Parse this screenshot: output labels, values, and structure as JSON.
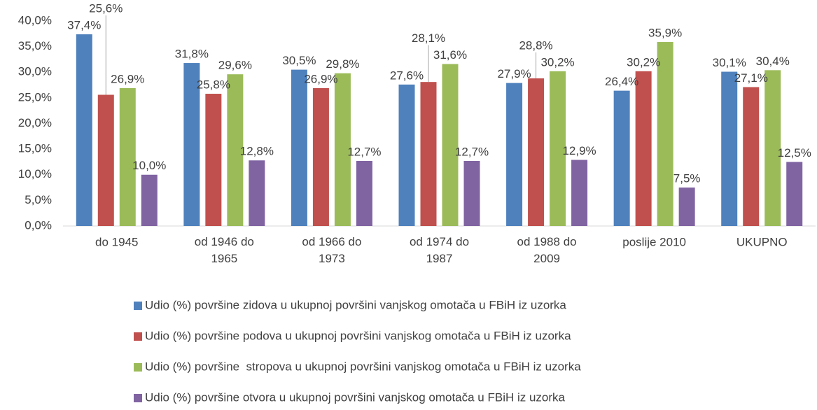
{
  "chart_data": {
    "type": "bar",
    "categories": [
      "do 1945",
      "od 1946 do 1965",
      "od 1966 do 1973",
      "od 1974 do 1987",
      "od 1988 do 2009",
      "poslije 2010",
      "UKUPNO"
    ],
    "series": [
      {
        "name": "Udio (%) površine zidova u ukupnoj površini vanjskog omotača u FBiH iz uzorka",
        "color": "#4f81bd",
        "values": [
          37.4,
          31.8,
          30.5,
          27.6,
          27.9,
          26.4,
          30.1
        ],
        "value_labels": [
          "37,4%",
          "31,8%",
          "30,5%",
          "27,6%",
          "27,9%",
          "26,4%",
          "30,1%"
        ]
      },
      {
        "name": "Udio (%) površine podova u ukupnoj površini vanjskog omotača u FBiH iz uzorka",
        "color": "#c0504d",
        "values": [
          25.6,
          25.8,
          26.9,
          28.1,
          28.8,
          30.2,
          27.1
        ],
        "value_labels": [
          "25,6%",
          "25,8%",
          "26,9%",
          "28,1%",
          "28,8%",
          "30,2%",
          "27,1%"
        ]
      },
      {
        "name": "Udio (%) površine  stropova u ukupnoj površini vanjskog omotača u FBiH iz uzorka",
        "color": "#9bbb59",
        "values": [
          26.9,
          29.6,
          29.8,
          31.6,
          30.2,
          35.9,
          30.4
        ],
        "value_labels": [
          "26,9%",
          "29,6%",
          "29,8%",
          "31,6%",
          "30,2%",
          "35,9%",
          "30,4%"
        ]
      },
      {
        "name": "Udio (%) površine otvora u ukupnoj površini vanjskog omotača u FBiH iz uzorka",
        "color": "#8064a2",
        "values": [
          10.0,
          12.8,
          12.7,
          12.7,
          12.9,
          7.5,
          12.5
        ],
        "value_labels": [
          "10,0%",
          "12,8%",
          "12,7%",
          "12,7%",
          "12,9%",
          "7,5%",
          "12,5%"
        ]
      }
    ],
    "ylim": [
      0,
      40
    ],
    "yticks": [
      {
        "value": 0,
        "label": "0,0%"
      },
      {
        "value": 5,
        "label": "5,0%"
      },
      {
        "value": 10,
        "label": "10,0%"
      },
      {
        "value": 15,
        "label": "15,0%"
      },
      {
        "value": 20,
        "label": "20,0%"
      },
      {
        "value": 25,
        "label": "25,0%"
      },
      {
        "value": 30,
        "label": "30,0%"
      },
      {
        "value": 35,
        "label": "35,0%"
      },
      {
        "value": 40,
        "label": "40,0%"
      }
    ],
    "grid": false,
    "legend": "bottom"
  }
}
